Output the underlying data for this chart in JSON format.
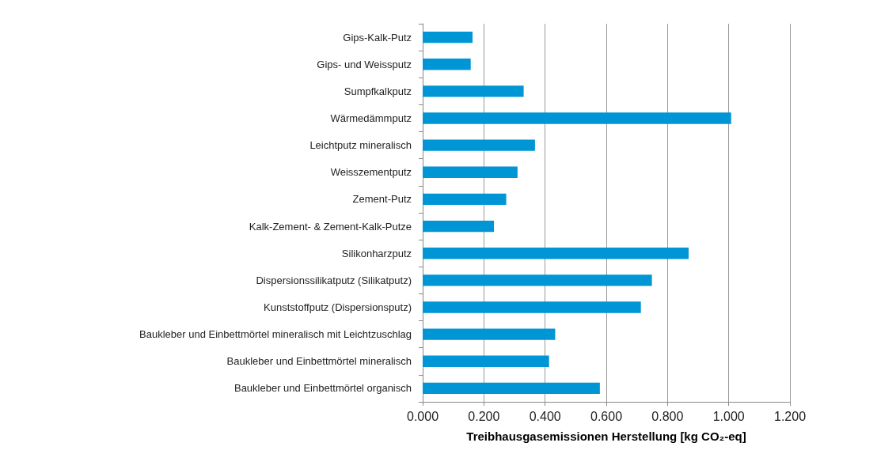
{
  "chart_data": {
    "type": "bar",
    "orientation": "horizontal",
    "xlabel": "Treibhausgasemissionen Herstellung [kg CO₂-eq]",
    "categories": [
      "Gips-Kalk-Putz",
      "Gips- und Weissputz",
      "Sumpfkalkputz",
      "Wärmedämmputz",
      "Leichtputz mineralisch",
      "Weisszementputz",
      "Zement-Putz",
      "Kalk-Zement- & Zement-Kalk-Putze",
      "Silikonharzputz",
      "Dispersionssilikatputz (Silikatputz)",
      "Kunststoffputz (Dispersionsputz)",
      "Baukleber und Einbettmörtel mineralisch mit Leichtzuschlag",
      "Baukleber und Einbettmörtel mineralisch",
      "Baukleber und Einbettmörtel organisch"
    ],
    "values": [
      0.163,
      0.157,
      0.33,
      1.008,
      0.367,
      0.31,
      0.273,
      0.233,
      0.869,
      0.749,
      0.713,
      0.433,
      0.413,
      0.579
    ],
    "color": "#0096d6",
    "xlim": [
      0,
      1.2
    ],
    "xticks": [
      {
        "value": 0,
        "label": "0.000"
      },
      {
        "value": 0.2,
        "label": "0.200"
      },
      {
        "value": 0.4,
        "label": "0.400"
      },
      {
        "value": 0.6,
        "label": "0.600"
      },
      {
        "value": 0.8,
        "label": "0.800"
      },
      {
        "value": 1,
        "label": "1.000"
      },
      {
        "value": 1.2,
        "label": "1.200"
      }
    ],
    "grid": "x"
  }
}
